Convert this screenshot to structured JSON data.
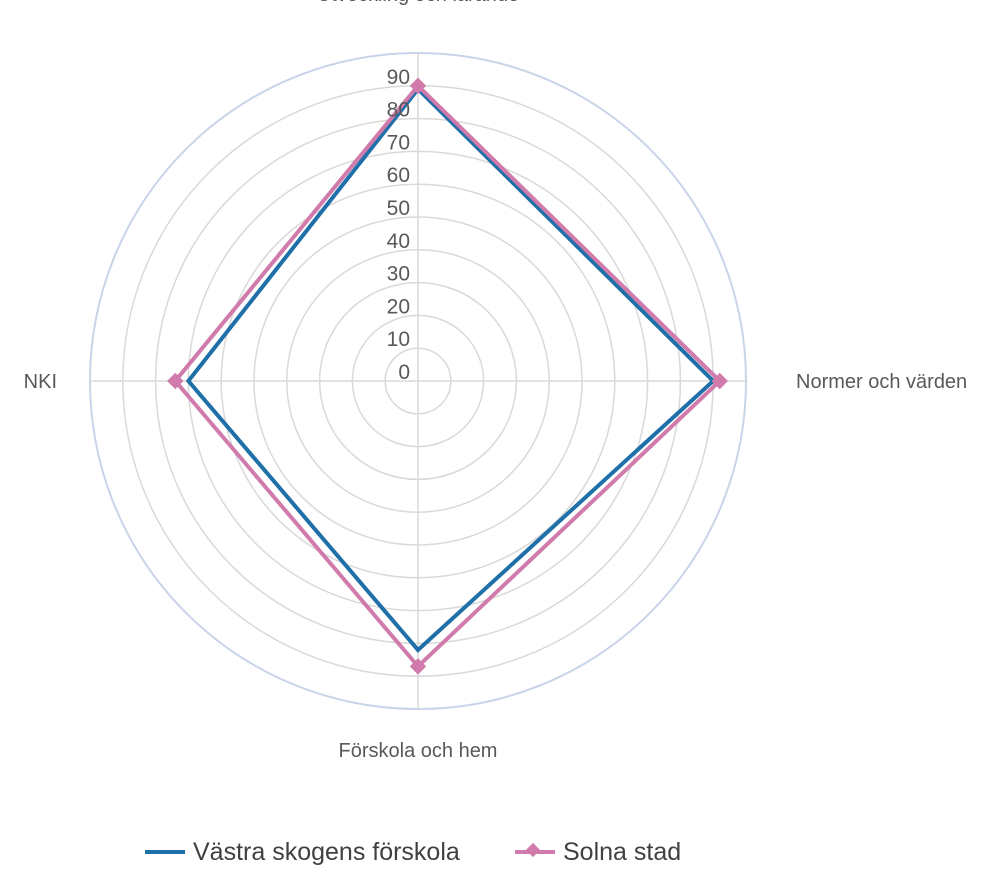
{
  "chart_data": {
    "type": "radar",
    "categories": [
      "Utveckling och lärande",
      "Normer och värden",
      "Förskola och hem",
      "NKI"
    ],
    "radial_axis": {
      "min": 0,
      "max": 90,
      "step": 10,
      "tick_labels": [
        "0",
        "10",
        "20",
        "30",
        "40",
        "50",
        "60",
        "70",
        "80",
        "90"
      ]
    },
    "grid": true,
    "legend_position": "bottom",
    "series": [
      {
        "name": "Västra skogens förskola",
        "values": [
          89,
          90,
          82,
          70
        ],
        "color": "#1F6FA8",
        "marker": "none"
      },
      {
        "name": "Solna stad",
        "values": [
          90,
          92,
          87,
          74
        ],
        "color": "#D07BAB",
        "marker": "diamond"
      }
    ],
    "colors": {
      "grid": "#D9D9D9",
      "outer_ring": "#C9D4E8",
      "text": "#595959"
    }
  }
}
